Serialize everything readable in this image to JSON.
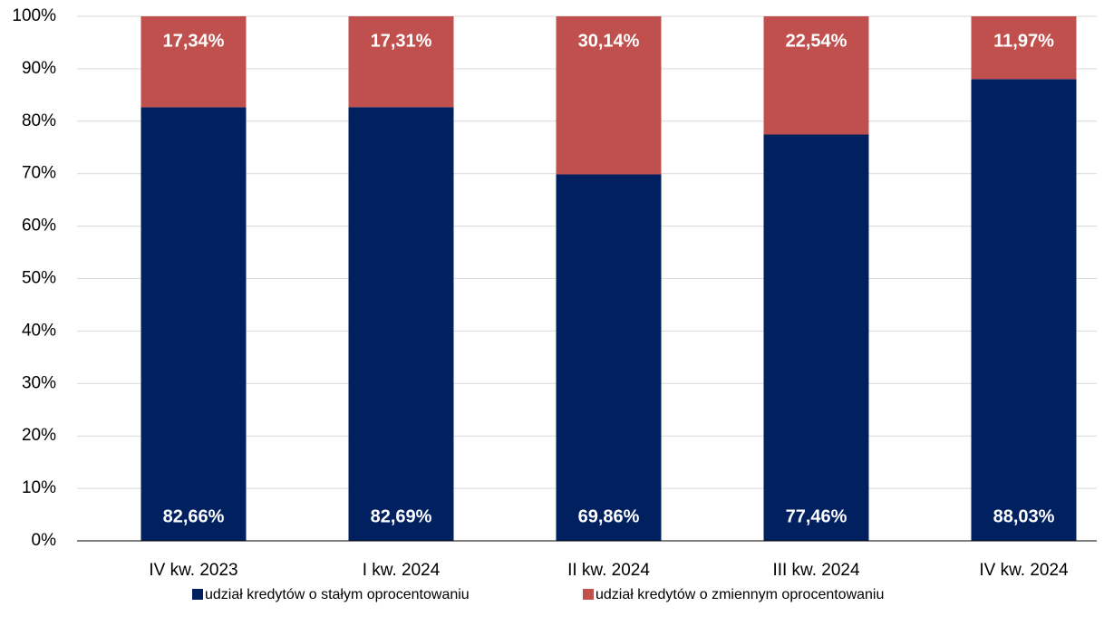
{
  "chart_data": {
    "type": "stacked_bar",
    "categories": [
      "IV kw. 2023",
      "I kw. 2024",
      "II kw. 2024",
      "III kw. 2024",
      "IV kw. 2024"
    ],
    "series": [
      {
        "name": "udział kredytów o stałym oprocentowaniu",
        "color": "#002060",
        "values": [
          82.66,
          82.69,
          69.86,
          77.46,
          88.03
        ],
        "value_labels": [
          "82,66%",
          "82,69%",
          "69,86%",
          "77,46%",
          "88,03%"
        ]
      },
      {
        "name": "udział kredytów o zmiennym oprocentowaniu",
        "color": "#c0504d",
        "values": [
          17.34,
          17.31,
          30.14,
          22.54,
          11.97
        ],
        "value_labels": [
          "17,34%",
          "17,31%",
          "30,14%",
          "22,54%",
          "11,97%"
        ]
      }
    ],
    "ylim": [
      0,
      100
    ],
    "yticks": [
      {
        "value": 0,
        "label": "0%"
      },
      {
        "value": 10,
        "label": "10%"
      },
      {
        "value": 20,
        "label": "20%"
      },
      {
        "value": 30,
        "label": "30%"
      },
      {
        "value": 40,
        "label": "40%"
      },
      {
        "value": 50,
        "label": "50%"
      },
      {
        "value": 60,
        "label": "60%"
      },
      {
        "value": 70,
        "label": "70%"
      },
      {
        "value": 80,
        "label": "80%"
      },
      {
        "value": 90,
        "label": "90%"
      },
      {
        "value": 100,
        "label": "100%"
      }
    ],
    "grid": true,
    "legend": "bottom"
  }
}
